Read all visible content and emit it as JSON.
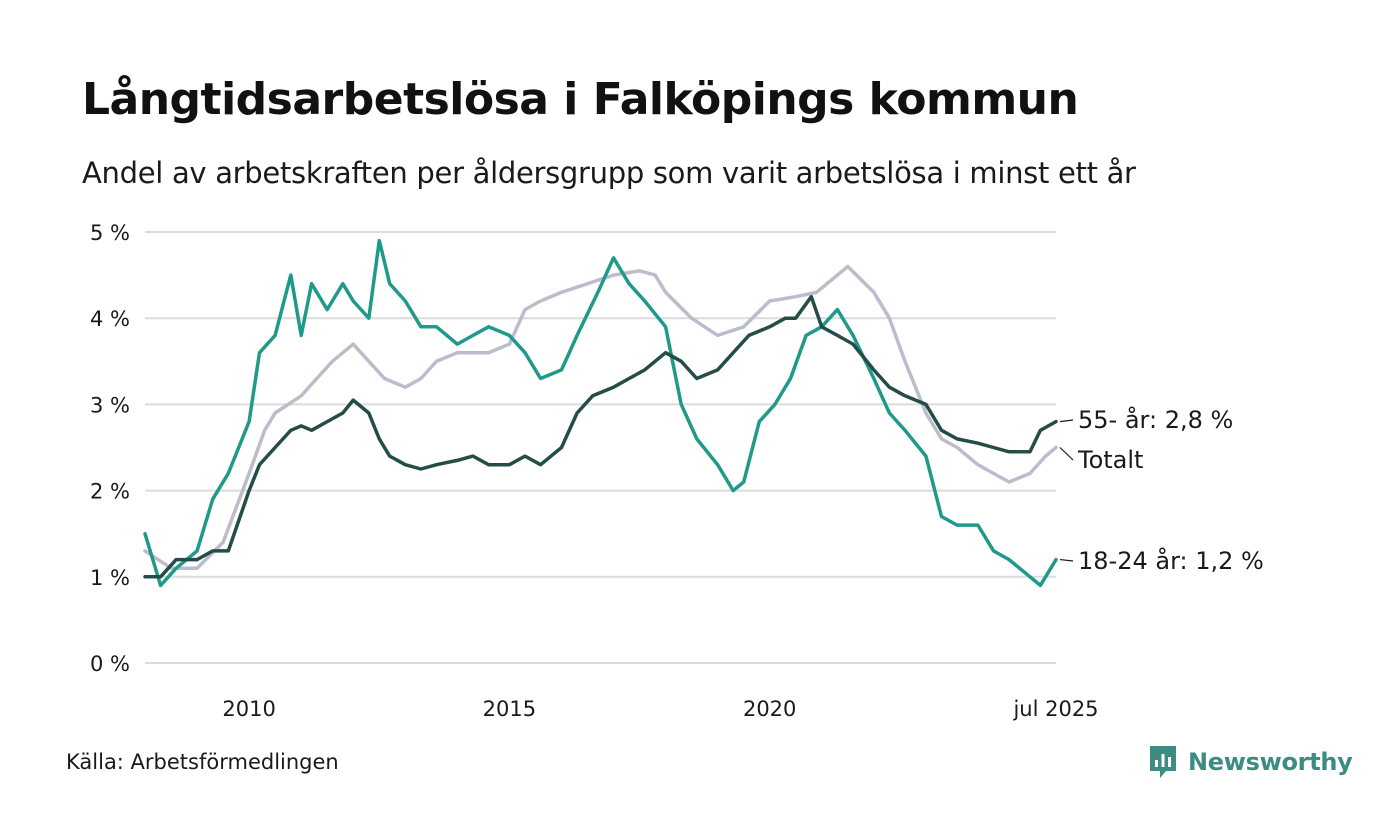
{
  "header": {
    "title": "Långtidsarbetslösa i Falköpings kommun",
    "subtitle": "Andel av arbetskraften per åldersgrupp som varit arbetslösa i minst ett år"
  },
  "footer": {
    "source": "Källa: Arbetsförmedlingen",
    "brand": "Newsworthy",
    "brand_color": "#3e8b83"
  },
  "chart_data": {
    "type": "line",
    "y_ticks": [
      "0 %",
      "1 %",
      "2 %",
      "3 %",
      "4 %",
      "5 %"
    ],
    "x_ticks": [
      {
        "label": "2010",
        "x": 2010.0
      },
      {
        "label": "2015",
        "x": 2015.0
      },
      {
        "label": "2020",
        "x": 2020.0
      },
      {
        "label": "jul 2025",
        "x": 2025.5
      }
    ],
    "xlim": [
      2008.0,
      2025.5
    ],
    "ylim": [
      0,
      5
    ],
    "grid": true,
    "gridline_color": "#dcdcdc",
    "series": [
      {
        "name": "Totalt",
        "label": "Totalt",
        "color": "#bdbccc",
        "x": [
          2008.0,
          2008.5,
          2009.0,
          2009.5,
          2010.0,
          2010.3,
          2010.5,
          2011.0,
          2011.3,
          2011.6,
          2012.0,
          2012.3,
          2012.6,
          2013.0,
          2013.3,
          2013.6,
          2014.0,
          2014.3,
          2014.6,
          2015.0,
          2015.3,
          2015.6,
          2016.0,
          2016.5,
          2017.0,
          2017.5,
          2017.8,
          2018.0,
          2018.5,
          2019.0,
          2019.5,
          2020.0,
          2020.5,
          2020.9,
          2021.3,
          2021.5,
          2022.0,
          2022.3,
          2022.6,
          2023.0,
          2023.3,
          2023.6,
          2024.0,
          2024.3,
          2024.6,
          2025.0,
          2025.3,
          2025.5
        ],
        "values": [
          1.3,
          1.1,
          1.1,
          1.4,
          2.2,
          2.7,
          2.9,
          3.1,
          3.3,
          3.5,
          3.7,
          3.5,
          3.3,
          3.2,
          3.3,
          3.5,
          3.6,
          3.6,
          3.6,
          3.7,
          4.1,
          4.2,
          4.3,
          4.4,
          4.5,
          4.55,
          4.5,
          4.3,
          4.0,
          3.8,
          3.9,
          4.2,
          4.25,
          4.3,
          4.5,
          4.6,
          4.3,
          4.0,
          3.5,
          2.9,
          2.6,
          2.5,
          2.3,
          2.2,
          2.1,
          2.2,
          2.4,
          2.5
        ]
      },
      {
        "name": "18-24 år",
        "label": "18-24 år: 1,2 %",
        "color": "#1f9a8a",
        "x": [
          2008.0,
          2008.3,
          2008.6,
          2009.0,
          2009.3,
          2009.6,
          2010.0,
          2010.2,
          2010.5,
          2010.8,
          2011.0,
          2011.2,
          2011.5,
          2011.8,
          2012.0,
          2012.3,
          2012.5,
          2012.7,
          2013.0,
          2013.3,
          2013.6,
          2014.0,
          2014.3,
          2014.6,
          2015.0,
          2015.3,
          2015.6,
          2016.0,
          2016.3,
          2016.7,
          2017.0,
          2017.3,
          2017.6,
          2018.0,
          2018.3,
          2018.6,
          2019.0,
          2019.3,
          2019.5,
          2019.8,
          2020.1,
          2020.4,
          2020.7,
          2021.0,
          2021.3,
          2021.6,
          2022.0,
          2022.3,
          2022.6,
          2023.0,
          2023.3,
          2023.6,
          2024.0,
          2024.3,
          2024.6,
          2025.0,
          2025.2,
          2025.5
        ],
        "values": [
          1.5,
          0.9,
          1.1,
          1.3,
          1.9,
          2.2,
          2.8,
          3.6,
          3.8,
          4.5,
          3.8,
          4.4,
          4.1,
          4.4,
          4.2,
          4.0,
          4.9,
          4.4,
          4.2,
          3.9,
          3.9,
          3.7,
          3.8,
          3.9,
          3.8,
          3.6,
          3.3,
          3.4,
          3.8,
          4.3,
          4.7,
          4.4,
          4.2,
          3.9,
          3.0,
          2.6,
          2.3,
          2.0,
          2.1,
          2.8,
          3.0,
          3.3,
          3.8,
          3.9,
          4.1,
          3.8,
          3.3,
          2.9,
          2.7,
          2.4,
          1.7,
          1.6,
          1.6,
          1.3,
          1.2,
          1.0,
          0.9,
          1.2
        ]
      },
      {
        "name": "55- år",
        "label": "55- år: 2,8 %",
        "color": "#244d48",
        "x": [
          2008.0,
          2008.3,
          2008.6,
          2009.0,
          2009.3,
          2009.6,
          2010.0,
          2010.2,
          2010.5,
          2010.8,
          2011.0,
          2011.2,
          2011.5,
          2011.8,
          2012.0,
          2012.3,
          2012.5,
          2012.7,
          2013.0,
          2013.3,
          2013.6,
          2014.0,
          2014.3,
          2014.6,
          2015.0,
          2015.3,
          2015.6,
          2016.0,
          2016.3,
          2016.6,
          2017.0,
          2017.3,
          2017.6,
          2018.0,
          2018.3,
          2018.6,
          2019.0,
          2019.3,
          2019.6,
          2020.0,
          2020.3,
          2020.5,
          2020.8,
          2021.0,
          2021.3,
          2021.6,
          2022.0,
          2022.3,
          2022.6,
          2023.0,
          2023.3,
          2023.6,
          2024.0,
          2024.3,
          2024.6,
          2025.0,
          2025.2,
          2025.5
        ],
        "values": [
          1.0,
          1.0,
          1.2,
          1.2,
          1.3,
          1.3,
          2.0,
          2.3,
          2.5,
          2.7,
          2.75,
          2.7,
          2.8,
          2.9,
          3.05,
          2.9,
          2.6,
          2.4,
          2.3,
          2.25,
          2.3,
          2.35,
          2.4,
          2.3,
          2.3,
          2.4,
          2.3,
          2.5,
          2.9,
          3.1,
          3.2,
          3.3,
          3.4,
          3.6,
          3.5,
          3.3,
          3.4,
          3.6,
          3.8,
          3.9,
          4.0,
          4.0,
          4.25,
          3.9,
          3.8,
          3.7,
          3.4,
          3.2,
          3.1,
          3.0,
          2.7,
          2.6,
          2.55,
          2.5,
          2.45,
          2.45,
          2.7,
          2.8
        ]
      }
    ]
  }
}
